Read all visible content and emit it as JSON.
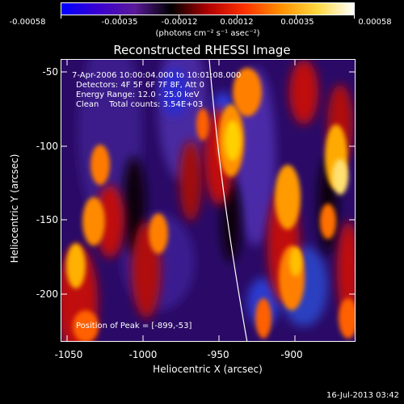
{
  "colorbar": {
    "tick_labels": [
      "-0.00058",
      "-0.00035",
      "-0.00012",
      "0.00012",
      "0.00035",
      "0.00058"
    ],
    "units": "(photons cm⁻² s⁻¹ asec⁻²)",
    "colormap": [
      "#0000ff",
      "#3a00d0",
      "#5a1a9a",
      "#000000",
      "#b00000",
      "#ff3000",
      "#ff9000",
      "#ffd840",
      "#ffffff"
    ]
  },
  "plot": {
    "title": "Reconstructed RHESSI Image",
    "info_lines": [
      "7-Apr-2006 10:00:04.000 to 10:01:08.000",
      "Detectors: 4F 5F 6F 7F 8F, Att 0",
      "Energy Range: 12.0 - 25.0 keV",
      "Clean    Total counts: 3.54E+03"
    ],
    "peak_text": "Position of Peak = [-899,-53]",
    "x_axis": {
      "title": "Heliocentric X (arcsec)",
      "ticks": [
        "-1050",
        "-1000",
        "-950",
        "-900"
      ]
    },
    "y_axis": {
      "title": "Heliocentric Y (arcsec)",
      "ticks": [
        "-50",
        "-100",
        "-150",
        "-200"
      ]
    }
  },
  "timestamp": "16-Jul-2013 03:42"
}
